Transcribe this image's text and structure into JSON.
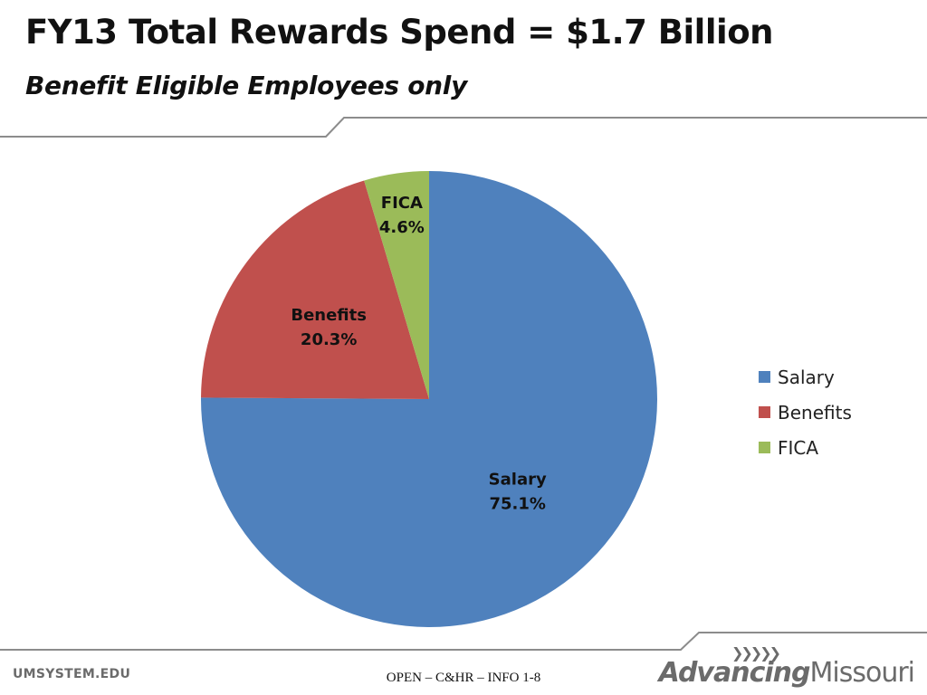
{
  "slide": {
    "title": "FY13 Total Rewards Spend = $1.7 Billion",
    "subtitle": "Benefit Eligible Employees only"
  },
  "footer": {
    "left": "UMSYSTEM.EDU",
    "center": "OPEN – C&HR – INFO 1-8",
    "logo_arrows": "❯❯❯❯❯",
    "logo_bold": "Advancing",
    "logo_light": "Missouri"
  },
  "colors": {
    "salary": "#4f81bd",
    "benefits": "#c0504d",
    "fica": "#9bbb59",
    "frame_line": "#8c8c8c"
  },
  "chart_data": {
    "type": "pie",
    "categories": [
      "Salary",
      "Benefits",
      "FICA"
    ],
    "values": [
      75.1,
      20.3,
      4.6
    ],
    "value_labels": [
      "75.1%",
      "20.3%",
      "4.6%"
    ],
    "title": "",
    "legend_placement": "right"
  }
}
